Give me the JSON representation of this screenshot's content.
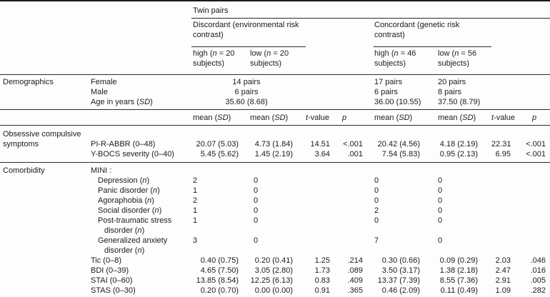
{
  "table": {
    "header": {
      "twin_pairs": "Twin pairs",
      "discordant_group": "Discordant (environmental risk contrast)",
      "concordant_group": "Concordant (genetic risk contrast)",
      "discordant_high": "high (*n* = 20 subjects)",
      "discordant_low": "low (*n* = 20 subjects)",
      "concordant_high": "high (*n* = 46 subjects)",
      "concordant_low": "low (*n* = 56 subjects)",
      "mean_sd": "mean (*SD*)",
      "t_value": "*t*-value",
      "p": "*p*"
    },
    "demographics": {
      "section_label": "Demographics",
      "rows": [
        {
          "label": "Female",
          "discordant": "14 pairs",
          "concordant_high": "17 pairs",
          "concordant_low": "20 pairs"
        },
        {
          "label": "Male",
          "discordant": "6 pairs",
          "concordant_high": "6 pairs",
          "concordant_low": "8 pairs"
        },
        {
          "label": "Age in years (*SD*)",
          "discordant": "35.60 (8.68)",
          "concordant_high": "36.00 (10.55)",
          "concordant_low": "37.50 (8.79)"
        }
      ]
    },
    "ocd_symptoms": {
      "section_label": "Obsessive compulsive symptoms",
      "rows": [
        {
          "label": "PI-R-ABBR (0–48)",
          "d_high_mean": "20.07 (5.03)",
          "d_low_mean": "4.73 (1.84)",
          "d_t": "14.51",
          "d_p": "<.001",
          "c_high_mean": "20.42 (4.56)",
          "c_low_mean": "4.18 (2.19)",
          "c_t": "22.31",
          "c_p": "<.001"
        },
        {
          "label": "Y-BOCS severity (0–40)",
          "d_high_mean": "5.45 (5.62)",
          "d_low_mean": "1.45 (2.19)",
          "d_t": "3.64",
          "d_p": ".001",
          "c_high_mean": "7.54 (5.83)",
          "c_low_mean": "0.95 (2.13)",
          "c_t": "6.95",
          "c_p": "<.001"
        }
      ]
    },
    "comorbidity": {
      "section_label": "Comorbidity",
      "mini_label": "MINI :",
      "mini_rows": [
        {
          "label": "Depression (*n*)",
          "d_high": "2",
          "d_low": "0",
          "c_high": "0",
          "c_low": "0"
        },
        {
          "label": "Panic disorder (*n*)",
          "d_high": "1",
          "d_low": "0",
          "c_high": "0",
          "c_low": "0"
        },
        {
          "label": "Agoraphobia (*n*)",
          "d_high": "2",
          "d_low": "0",
          "c_high": "0",
          "c_low": "0"
        },
        {
          "label": "Social disorder (*n*)",
          "d_high": "1",
          "d_low": "0",
          "c_high": "2",
          "c_low": "0"
        },
        {
          "label": "Post-traumatic stress disorder (*n*)",
          "d_high": "1",
          "d_low": "0",
          "c_high": "0",
          "c_low": "0"
        },
        {
          "label": "Generalized anxiety disorder (*n*)",
          "d_high": "3",
          "d_low": "0",
          "c_high": "7",
          "c_low": "0"
        }
      ],
      "scale_rows": [
        {
          "label": "Tic (0–8)",
          "d_high_mean": "0.40 (0.75)",
          "d_low_mean": "0.20 (0.41)",
          "d_t": "1.25",
          "d_p": ".214",
          "c_high_mean": "0.30 (0.66)",
          "c_low_mean": "0.09 (0.29)",
          "c_t": "2.03",
          "c_p": ".046"
        },
        {
          "label": "BDI (0–39)",
          "d_high_mean": "4.65 (7.50)",
          "d_low_mean": "3.05 (2.80)",
          "d_t": "1.73",
          "d_p": ".089",
          "c_high_mean": "3.50 (3.17)",
          "c_low_mean": "1.38 (2.18)",
          "c_t": "2.47",
          "c_p": ".016"
        },
        {
          "label": "STAI (0–60)",
          "d_high_mean": "13.85 (8.54)",
          "d_low_mean": "12.25 (6.13)",
          "d_t": "0.83",
          "d_p": ".409",
          "c_high_mean": "13.37 (7.39)",
          "c_low_mean": "8.55 (7.36)",
          "c_t": "2.91",
          "c_p": ".005"
        },
        {
          "label": "STAS (0–30)",
          "d_high_mean": "0.20 (0.70)",
          "d_low_mean": "0.00 (0.00)",
          "d_t": "0.91",
          "d_p": ".365",
          "c_high_mean": "0.46 (2.09)",
          "c_low_mean": "0.11 (0.49)",
          "c_t": "1.09",
          "c_p": ".282"
        }
      ]
    },
    "colors": {
      "text": "#1c1c1c",
      "rule": "#2b2b2b",
      "outer_border": "#1a1a1a",
      "background": "#fdfdfd"
    }
  }
}
